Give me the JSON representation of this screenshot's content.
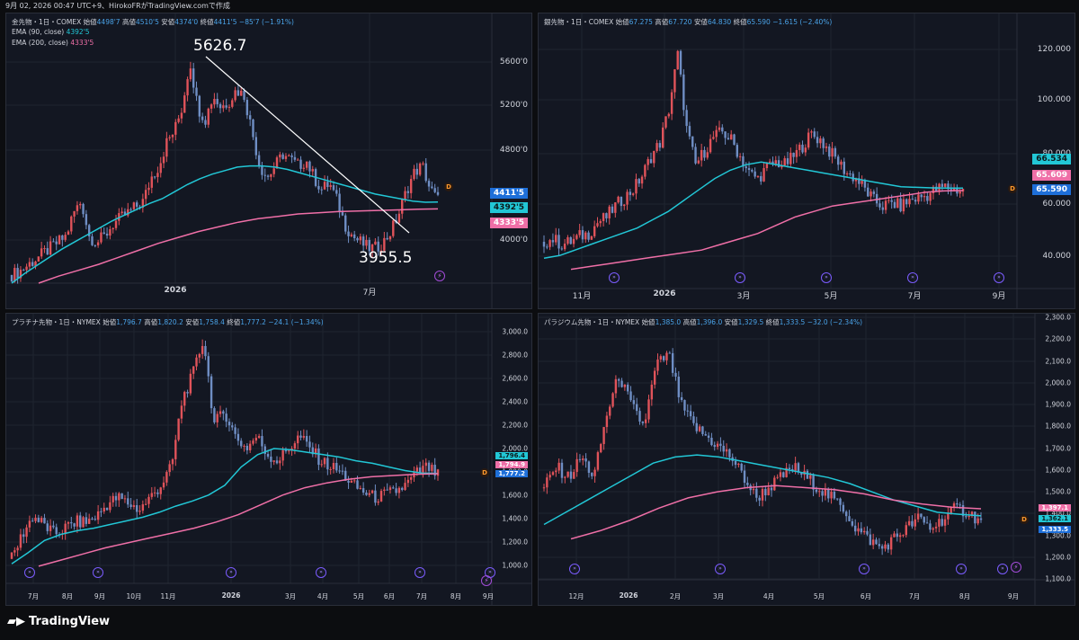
{
  "topbar": {
    "text": "9月 02, 2026 00:47 UTC+9、HirokoFRがTradingView.comで作成"
  },
  "brand": {
    "logo_icon": "tradingview-logo-icon",
    "name": "TradingView"
  },
  "colors": {
    "up": "#e0535a",
    "down": "#6f8ec4",
    "ema90": "#22c7d6",
    "ema200": "#ef6fa7",
    "last": "#1e6fd9"
  },
  "charts": [
    {
      "id": "gold",
      "header": {
        "name": "金先物・1日・COMEX",
        "o_lbl": "始値",
        "o": "4498'7",
        "h_lbl": "高値",
        "h": "4510'5",
        "l_lbl": "安値",
        "l": "4374'0",
        "c_lbl": "終値",
        "c": "4411'5",
        "chg": "−85'7 (−1.91%)"
      },
      "ema_legends": [
        {
          "label": "EMA (90, close)",
          "value": "4392'5"
        },
        {
          "label": "EMA (200, close)",
          "value": "4333'5"
        }
      ],
      "annotations": [
        {
          "text": "5626.7"
        },
        {
          "text": "3955.5"
        }
      ],
      "y_ticks": [
        "5600'0",
        "5200'0",
        "4800'0",
        "4000'0"
      ],
      "x_ticks": [
        "2026",
        "7月"
      ],
      "tags": [
        "4411'5",
        "4392'5",
        "4333'5"
      ]
    },
    {
      "id": "silver",
      "header": {
        "name": "銀先物・1日・COMEX",
        "o_lbl": "始値",
        "o": "67.275",
        "h_lbl": "高値",
        "h": "67.720",
        "l_lbl": "安値",
        "l": "64.830",
        "c_lbl": "終値",
        "c": "65.590",
        "chg": "−1.615 (−2.40%)"
      },
      "y_ticks": [
        "120.000",
        "100.000",
        "80.000",
        "60.000",
        "40.000"
      ],
      "x_ticks": [
        "11月",
        "2026",
        "3月",
        "5月",
        "7月",
        "9月"
      ],
      "tags": [
        "66.534",
        "65.609",
        "65.590"
      ]
    },
    {
      "id": "platinum",
      "header": {
        "name": "プラチナ先物・1日・NYMEX",
        "o_lbl": "始値",
        "o": "1,796.7",
        "h_lbl": "高値",
        "h": "1,820.2",
        "l_lbl": "安値",
        "l": "1,758.4",
        "c_lbl": "終値",
        "c": "1,777.2",
        "chg": "−24.1 (−1.34%)"
      },
      "y_ticks": [
        "3,000.0",
        "2,800.0",
        "2,600.0",
        "2,400.0",
        "2,200.0",
        "2,000.0",
        "1,800.0",
        "1,600.0",
        "1,400.0",
        "1,200.0",
        "1,000.0"
      ],
      "x_ticks": [
        "7月",
        "8月",
        "9月",
        "10月",
        "11月",
        "2026",
        "3月",
        "4月",
        "5月",
        "6月",
        "7月",
        "8月",
        "9月"
      ],
      "tags": [
        "1,796.4",
        "1,794.9",
        "1,777.2"
      ]
    },
    {
      "id": "palladium",
      "header": {
        "name": "パラジウム先物・1日・NYMEX",
        "o_lbl": "始値",
        "o": "1,385.0",
        "h_lbl": "高値",
        "h": "1,396.0",
        "l_lbl": "安値",
        "l": "1,329.5",
        "c_lbl": "終値",
        "c": "1,333.5",
        "chg": "−32.0 (−2.34%)"
      },
      "y_ticks": [
        "2,300.0",
        "2,200.0",
        "2,100.0",
        "2,000.0",
        "1,900.0",
        "1,800.0",
        "1,700.0",
        "1,600.0",
        "1,500.0",
        "1,400.0",
        "1,300.0",
        "1,200.0",
        "1,100.0"
      ],
      "x_ticks": [
        "12月",
        "2026",
        "2月",
        "3月",
        "4月",
        "5月",
        "6月",
        "7月",
        "8月",
        "9月"
      ],
      "tags": [
        "1,397.1",
        "1,362.1",
        "1,333.5"
      ]
    }
  ],
  "chart_data": [
    {
      "type": "candlestick",
      "title": "金先物・1日・COMEX",
      "ylim": [
        3700,
        6000
      ],
      "series": [
        {
          "name": "price",
          "values": [
            3770,
            3800,
            3850,
            3900,
            3950,
            4000,
            4050,
            4100,
            4300,
            4400,
            4100,
            4050,
            4100,
            4200,
            4250,
            4300,
            4350,
            4400,
            4600,
            4700,
            4900,
            5000,
            5200,
            5600,
            5200,
            5100,
            5300,
            5200,
            5250,
            5350,
            5300,
            5000,
            4700,
            4600,
            4700,
            4800,
            4750,
            4700,
            4750,
            4600,
            4500,
            4550,
            4400,
            4200,
            4100,
            4050,
            4000,
            4000,
            4050,
            4150,
            4300,
            4500,
            4650,
            4700,
            4500,
            4411
          ]
        },
        {
          "name": "EMA (90, close)",
          "values": [
            3700,
            3780,
            3850,
            3920,
            3990,
            4050,
            4110,
            4170,
            4230,
            4280,
            4330,
            4380,
            4420,
            4480,
            4540,
            4590,
            4630,
            4660,
            4690,
            4700,
            4700,
            4690,
            4670,
            4640,
            4610,
            4580,
            4550,
            4520,
            4490,
            4460,
            4440,
            4420,
            4400,
            4390,
            4392
          ]
        },
        {
          "name": "EMA (200, close)",
          "values": [
            3700,
            3760,
            3810,
            3860,
            3920,
            3980,
            4040,
            4090,
            4140,
            4180,
            4220,
            4250,
            4270,
            4290,
            4300,
            4310,
            4315,
            4320,
            4325,
            4330,
            4333
          ]
        }
      ],
      "annotations": [
        {
          "label": "5626.7"
        },
        {
          "label": "3955.5"
        }
      ]
    },
    {
      "type": "candlestick",
      "title": "銀先物・1日・COMEX",
      "ylim": [
        30,
        130
      ],
      "series": [
        {
          "name": "price",
          "values": [
            47,
            48,
            46,
            47,
            49,
            50,
            54,
            56,
            60,
            63,
            66,
            71,
            78,
            83,
            95,
            115,
            88,
            75,
            80,
            85,
            87,
            84,
            78,
            72,
            70,
            74,
            76,
            75,
            78,
            82,
            86,
            84,
            80,
            76,
            72,
            70,
            66,
            62,
            60,
            61,
            60,
            62,
            63,
            64,
            66,
            67,
            66,
            65.59
          ]
        },
        {
          "name": "EMA (90)",
          "values": [
            41,
            42,
            44,
            46,
            48,
            50,
            52,
            55,
            58,
            62,
            66,
            70,
            73,
            75,
            76,
            75,
            74,
            73,
            72,
            71,
            70,
            69,
            68,
            67,
            66.8,
            66.6,
            66.5,
            66.534
          ]
        },
        {
          "name": "EMA (200)",
          "values": [
            37,
            38,
            39,
            40,
            41,
            42,
            43,
            44,
            46,
            48,
            50,
            53,
            56,
            58,
            60,
            61,
            62,
            63,
            64,
            65,
            65.5,
            65.609
          ]
        }
      ]
    },
    {
      "type": "candlestick",
      "title": "プラチナ先物・1日・NYMEX",
      "ylim": [
        900,
        3100
      ],
      "series": [
        {
          "name": "price",
          "values": [
            1100,
            1300,
            1450,
            1380,
            1300,
            1350,
            1400,
            1400,
            1450,
            1550,
            1600,
            1550,
            1500,
            1600,
            1700,
            1850,
            2400,
            2600,
            2900,
            2200,
            2300,
            2100,
            2000,
            2100,
            1950,
            1900,
            2000,
            2100,
            2000,
            1900,
            1850,
            1800,
            1700,
            1650,
            1600,
            1620,
            1650,
            1700,
            1800,
            1850,
            1777
          ]
        },
        {
          "name": "EMA (90)",
          "values": [
            1060,
            1150,
            1250,
            1300,
            1330,
            1350,
            1380,
            1410,
            1440,
            1480,
            1530,
            1570,
            1620,
            1700,
            1850,
            1950,
            2000,
            1990,
            1970,
            1950,
            1930,
            1900,
            1880,
            1850,
            1820,
            1800,
            1796
          ]
        },
        {
          "name": "EMA (200)",
          "values": [
            1040,
            1090,
            1140,
            1190,
            1230,
            1270,
            1310,
            1350,
            1400,
            1460,
            1540,
            1620,
            1680,
            1720,
            1750,
            1770,
            1780,
            1790,
            1795
          ]
        }
      ]
    },
    {
      "type": "candlestick",
      "title": "パラジウム先物・1日・NYMEX",
      "ylim": [
        1050,
        2350
      ],
      "series": [
        {
          "name": "price",
          "values": [
            1500,
            1600,
            1550,
            1650,
            1550,
            1850,
            2050,
            1900,
            1800,
            2100,
            2150,
            1900,
            1800,
            1750,
            1700,
            1650,
            1550,
            1450,
            1500,
            1550,
            1600,
            1550,
            1500,
            1450,
            1400,
            1300,
            1250,
            1200,
            1250,
            1300,
            1350,
            1300,
            1350,
            1400,
            1380,
            1333.5
          ]
        },
        {
          "name": "EMA (90)",
          "values": [
            1320,
            1380,
            1440,
            1500,
            1560,
            1620,
            1650,
            1660,
            1650,
            1630,
            1610,
            1590,
            1570,
            1550,
            1520,
            1480,
            1440,
            1410,
            1380,
            1370,
            1362.1
          ]
        },
        {
          "name": "EMA (200)",
          "values": [
            1250,
            1290,
            1340,
            1400,
            1450,
            1480,
            1500,
            1510,
            1500,
            1490,
            1470,
            1440,
            1420,
            1405,
            1397.1
          ]
        }
      ]
    }
  ]
}
